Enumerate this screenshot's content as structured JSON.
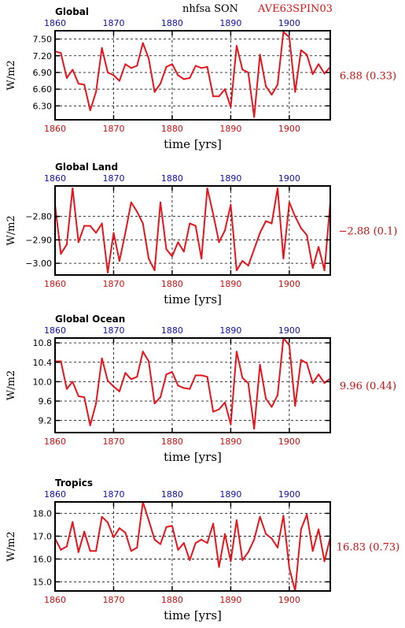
{
  "header": {
    "variable": "nhfsa SON",
    "case": "AVE63SPIN03"
  },
  "colors": {
    "line": "#e8141c",
    "top_ticks": "#1010b0",
    "bottom_ticks": "#cc1010",
    "text": "#000000"
  },
  "chart_data": [
    {
      "type": "line",
      "title": "Global",
      "ylabel": "W/m2",
      "xlabel": "time [yrs]",
      "summary": "6.88 (0.33)",
      "xlim": [
        1860,
        1907
      ],
      "ylim": [
        6.05,
        7.65
      ],
      "x_ticks": [
        1860,
        1870,
        1880,
        1890,
        1900
      ],
      "x_tick_labels": [
        "1860",
        "1870",
        "1880",
        "1890",
        "1900"
      ],
      "y_ticks": [
        6.3,
        6.6,
        6.9,
        7.2,
        7.5
      ],
      "y_tick_labels": [
        "6.30",
        "6.60",
        "6.90",
        "7.20",
        "7.50"
      ],
      "grid": true,
      "x": [
        1860,
        1861,
        1862,
        1863,
        1864,
        1865,
        1866,
        1867,
        1868,
        1869,
        1870,
        1871,
        1872,
        1873,
        1874,
        1875,
        1876,
        1877,
        1878,
        1879,
        1880,
        1881,
        1882,
        1883,
        1884,
        1885,
        1886,
        1887,
        1888,
        1889,
        1890,
        1891,
        1892,
        1893,
        1894,
        1895,
        1896,
        1897,
        1898,
        1899,
        1900,
        1901,
        1902,
        1903,
        1904,
        1905,
        1906,
        1907
      ],
      "y": [
        7.28,
        7.25,
        6.8,
        6.95,
        6.7,
        6.68,
        6.22,
        6.55,
        7.34,
        6.9,
        6.85,
        6.75,
        7.05,
        6.98,
        7.02,
        7.43,
        7.15,
        6.55,
        6.7,
        7.0,
        7.05,
        6.85,
        6.78,
        6.8,
        7.02,
        6.98,
        7.0,
        6.47,
        6.47,
        6.6,
        6.28,
        7.38,
        6.95,
        6.9,
        6.1,
        7.22,
        6.65,
        6.5,
        6.68,
        7.63,
        7.53,
        6.55,
        7.3,
        7.22,
        6.87,
        7.05,
        6.88,
        7.0
      ]
    },
    {
      "type": "line",
      "title": "Global Land",
      "ylabel": "W/m2",
      "xlabel": "time [yrs]",
      "summary": "−2.88 (0.1)",
      "xlim": [
        1860,
        1907
      ],
      "ylim": [
        -3.05,
        -2.67
      ],
      "x_ticks": [
        1860,
        1870,
        1880,
        1890,
        1900
      ],
      "x_tick_labels": [
        "1860",
        "1870",
        "1880",
        "1890",
        "1900"
      ],
      "y_ticks": [
        -3.0,
        -2.9,
        -2.8
      ],
      "y_tick_labels": [
        "−3.00",
        "−2.90",
        "−2.80"
      ],
      "grid": true,
      "x": [
        1860,
        1861,
        1862,
        1863,
        1864,
        1865,
        1866,
        1867,
        1868,
        1869,
        1870,
        1871,
        1872,
        1873,
        1874,
        1875,
        1876,
        1877,
        1878,
        1879,
        1880,
        1881,
        1882,
        1883,
        1884,
        1885,
        1886,
        1887,
        1888,
        1889,
        1890,
        1891,
        1892,
        1893,
        1894,
        1895,
        1896,
        1897,
        1898,
        1899,
        1900,
        1901,
        1902,
        1903,
        1904,
        1905,
        1906,
        1907
      ],
      "y": [
        -2.75,
        -2.96,
        -2.92,
        -2.68,
        -2.91,
        -2.84,
        -2.84,
        -2.87,
        -2.83,
        -3.04,
        -2.87,
        -2.99,
        -2.87,
        -2.74,
        -2.78,
        -2.83,
        -2.98,
        -3.03,
        -2.74,
        -2.94,
        -2.97,
        -2.91,
        -2.95,
        -2.83,
        -2.84,
        -2.98,
        -2.68,
        -2.79,
        -2.91,
        -2.86,
        -2.75,
        -3.03,
        -2.99,
        -3.01,
        -2.94,
        -2.87,
        -2.82,
        -2.83,
        -2.68,
        -2.98,
        -2.74,
        -2.8,
        -2.85,
        -2.88,
        -3.02,
        -2.93,
        -3.03,
        -2.74
      ]
    },
    {
      "type": "line",
      "title": "Global Ocean",
      "ylabel": "W/m2",
      "xlabel": "time [yrs]",
      "summary": "9.96 (0.44)",
      "xlim": [
        1860,
        1907
      ],
      "ylim": [
        8.95,
        10.9
      ],
      "x_ticks": [
        1860,
        1870,
        1880,
        1890,
        1900
      ],
      "x_tick_labels": [
        "1860",
        "1870",
        "1880",
        "1890",
        "1900"
      ],
      "y_ticks": [
        9.2,
        9.6,
        10.0,
        10.4,
        10.8
      ],
      "y_tick_labels": [
        "9.2",
        "9.6",
        "10.0",
        "10.4",
        "10.8"
      ],
      "grid": true,
      "x": [
        1860,
        1861,
        1862,
        1863,
        1864,
        1865,
        1866,
        1867,
        1868,
        1869,
        1870,
        1871,
        1872,
        1873,
        1874,
        1875,
        1876,
        1877,
        1878,
        1879,
        1880,
        1881,
        1882,
        1883,
        1884,
        1885,
        1886,
        1887,
        1888,
        1889,
        1890,
        1891,
        1892,
        1893,
        1894,
        1895,
        1896,
        1897,
        1898,
        1899,
        1900,
        1901,
        1902,
        1903,
        1904,
        1905,
        1906,
        1907
      ],
      "y": [
        10.42,
        10.42,
        9.85,
        10.0,
        9.7,
        9.68,
        9.1,
        9.55,
        10.48,
        10.02,
        9.9,
        9.8,
        10.18,
        10.05,
        10.1,
        10.62,
        10.42,
        9.55,
        9.68,
        10.15,
        10.2,
        9.92,
        9.87,
        9.85,
        10.13,
        10.13,
        10.1,
        9.38,
        9.43,
        9.57,
        9.12,
        10.62,
        10.08,
        9.97,
        9.03,
        10.35,
        9.65,
        9.48,
        9.72,
        10.9,
        10.75,
        9.5,
        10.45,
        10.38,
        9.97,
        10.15,
        9.97,
        10.07
      ]
    },
    {
      "type": "line",
      "title": "Tropics",
      "ylabel": "W/m2",
      "xlabel": "time [yrs]",
      "summary": "16.83 (0.73)",
      "xlim": [
        1860,
        1907
      ],
      "ylim": [
        14.6,
        18.5
      ],
      "x_ticks": [
        1860,
        1870,
        1880,
        1890,
        1900
      ],
      "x_tick_labels": [
        "1860",
        "1870",
        "1880",
        "1890",
        "1900"
      ],
      "y_ticks": [
        15.0,
        16.0,
        17.0,
        18.0
      ],
      "y_tick_labels": [
        "15.0",
        "16.0",
        "17.0",
        "18.0"
      ],
      "grid": true,
      "x": [
        1860,
        1861,
        1862,
        1863,
        1864,
        1865,
        1866,
        1867,
        1868,
        1869,
        1870,
        1871,
        1872,
        1873,
        1874,
        1875,
        1876,
        1877,
        1878,
        1879,
        1880,
        1881,
        1882,
        1883,
        1884,
        1885,
        1886,
        1887,
        1888,
        1889,
        1890,
        1891,
        1892,
        1893,
        1894,
        1895,
        1896,
        1897,
        1898,
        1899,
        1900,
        1901,
        1902,
        1903,
        1904,
        1905,
        1906,
        1907
      ],
      "y": [
        16.9,
        16.4,
        16.55,
        17.62,
        16.3,
        17.2,
        16.35,
        16.35,
        17.85,
        17.6,
        16.95,
        17.35,
        17.15,
        16.35,
        16.5,
        18.5,
        17.7,
        16.85,
        16.65,
        17.4,
        17.45,
        16.4,
        16.7,
        15.95,
        16.7,
        16.85,
        16.7,
        17.55,
        15.65,
        17.1,
        15.9,
        17.7,
        15.95,
        16.3,
        16.85,
        17.85,
        17.1,
        16.9,
        16.5,
        17.9,
        15.6,
        14.6,
        17.3,
        17.95,
        16.35,
        17.3,
        15.9,
        16.95
      ]
    }
  ]
}
